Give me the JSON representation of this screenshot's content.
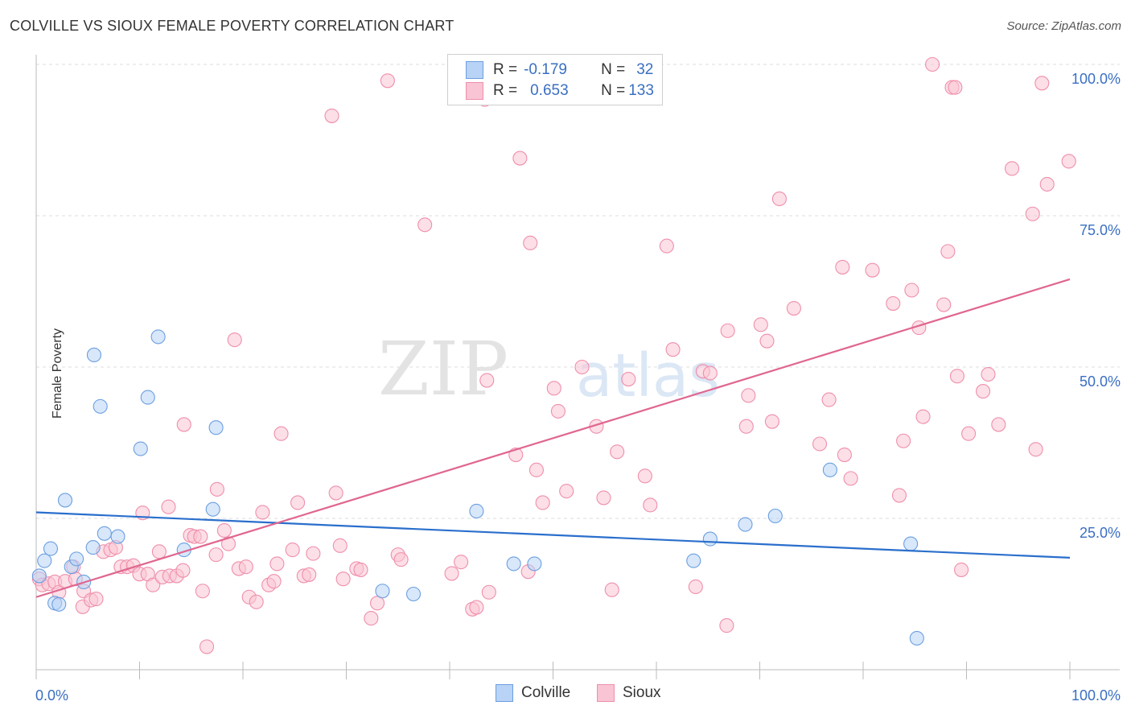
{
  "title": "COLVILLE VS SIOUX FEMALE POVERTY CORRELATION CHART",
  "source": "Source: ZipAtlas.com",
  "watermark": {
    "zip": "ZIP",
    "atlas": "atlas"
  },
  "colors": {
    "colville_fill": "#b8d3f5",
    "colville_stroke": "#6b9fe0",
    "colville_line": "#2a6fcc",
    "sioux_fill": "#f9c4d4",
    "sioux_stroke": "#ef8fab",
    "sioux_line": "#e0668f",
    "tick_label": "#3a6fc2",
    "grid": "#dedede"
  },
  "legend": {
    "rows": [
      {
        "r_label": "R =",
        "r_value": "-0.179",
        "n_label": "N =",
        "n_value": "32"
      },
      {
        "r_label": "R =",
        "r_value": "0.653",
        "n_label": "N =",
        "n_value": "133"
      }
    ]
  },
  "bottom_legend": [
    "Colville",
    "Sioux"
  ],
  "chart_data": {
    "type": "scatter",
    "title": "COLVILLE VS SIOUX FEMALE POVERTY CORRELATION CHART",
    "xlabel": "",
    "ylabel": "Female Poverty",
    "xlim": [
      0,
      100
    ],
    "ylim": [
      0,
      100
    ],
    "x_tick_labels": [
      "0.0%",
      "100.0%"
    ],
    "y_tick_labels": [
      "25.0%",
      "50.0%",
      "75.0%",
      "100.0%"
    ],
    "y_ticks": [
      25,
      50,
      75,
      100
    ],
    "grid": true,
    "legend_position": "top-center",
    "series": [
      {
        "name": "Colville",
        "trend": {
          "x": [
            0,
            100
          ],
          "y": [
            26.0,
            18.5
          ]
        },
        "points": [
          [
            0.3,
            15.5
          ],
          [
            0.8,
            18
          ],
          [
            1.4,
            20
          ],
          [
            1.8,
            11
          ],
          [
            2.2,
            10.8
          ],
          [
            2.8,
            28
          ],
          [
            3.4,
            17
          ],
          [
            3.9,
            18.3
          ],
          [
            4.6,
            14.5
          ],
          [
            5.5,
            20.2
          ],
          [
            5.6,
            52
          ],
          [
            6.2,
            43.5
          ],
          [
            6.6,
            22.5
          ],
          [
            7.9,
            22
          ],
          [
            10.1,
            36.5
          ],
          [
            10.8,
            45
          ],
          [
            11.8,
            55
          ],
          [
            14.3,
            19.8
          ],
          [
            17.1,
            26.5
          ],
          [
            17.4,
            40
          ],
          [
            33.5,
            13
          ],
          [
            36.5,
            12.5
          ],
          [
            42.6,
            26.2
          ],
          [
            46.2,
            17.5
          ],
          [
            48.2,
            17.5
          ],
          [
            65.2,
            21.6
          ],
          [
            63.6,
            18
          ],
          [
            68.6,
            24
          ],
          [
            71.5,
            25.4
          ],
          [
            76.8,
            33
          ],
          [
            84.6,
            20.8
          ],
          [
            85.2,
            5.2
          ]
        ]
      },
      {
        "name": "Sioux",
        "trend": {
          "x": [
            0,
            100
          ],
          "y": [
            12.0,
            64.5
          ]
        },
        "points": [
          [
            0.3,
            15
          ],
          [
            0.6,
            14
          ],
          [
            1.2,
            14.2
          ],
          [
            1.8,
            14.5
          ],
          [
            2.2,
            12.8
          ],
          [
            2.8,
            14.6
          ],
          [
            3.6,
            17
          ],
          [
            3.8,
            15
          ],
          [
            4.5,
            10.4
          ],
          [
            4.6,
            13
          ],
          [
            5.3,
            11.5
          ],
          [
            5.8,
            11.7
          ],
          [
            6.5,
            19.5
          ],
          [
            7.2,
            19.8
          ],
          [
            7.7,
            20.2
          ],
          [
            8.2,
            17
          ],
          [
            8.8,
            17
          ],
          [
            9.4,
            17.2
          ],
          [
            10.0,
            15.8
          ],
          [
            10.3,
            25.9
          ],
          [
            10.8,
            15.8
          ],
          [
            11.3,
            14
          ],
          [
            11.9,
            19.5
          ],
          [
            12.2,
            15.3
          ],
          [
            12.9,
            15.5
          ],
          [
            12.8,
            26.9
          ],
          [
            13.6,
            15.5
          ],
          [
            14.2,
            16.4
          ],
          [
            14.3,
            40.5
          ],
          [
            14.9,
            22.2
          ],
          [
            15.3,
            22
          ],
          [
            15.9,
            22
          ],
          [
            16.1,
            13
          ],
          [
            16.5,
            3.8
          ],
          [
            17.4,
            19
          ],
          [
            17.5,
            29.8
          ],
          [
            18.2,
            23
          ],
          [
            18.6,
            20.8
          ],
          [
            19.2,
            54.5
          ],
          [
            19.6,
            16.7
          ],
          [
            20.3,
            17
          ],
          [
            20.6,
            12
          ],
          [
            21.3,
            11.2
          ],
          [
            21.9,
            26
          ],
          [
            22.5,
            14
          ],
          [
            23.0,
            14.6
          ],
          [
            23.3,
            17.5
          ],
          [
            23.7,
            39
          ],
          [
            24.8,
            19.8
          ],
          [
            25.3,
            27.6
          ],
          [
            25.9,
            15.5
          ],
          [
            26.4,
            15.7
          ],
          [
            26.8,
            19.2
          ],
          [
            28.6,
            91.5
          ],
          [
            29.0,
            29.2
          ],
          [
            29.4,
            20.5
          ],
          [
            29.7,
            15
          ],
          [
            31.0,
            16.7
          ],
          [
            31.4,
            16.5
          ],
          [
            32.4,
            8.5
          ],
          [
            33.0,
            11
          ],
          [
            34.0,
            97.3
          ],
          [
            35.0,
            19
          ],
          [
            35.3,
            18.2
          ],
          [
            37.6,
            73.5
          ],
          [
            40.2,
            15.9
          ],
          [
            41.1,
            17.8
          ],
          [
            42.2,
            10
          ],
          [
            42.6,
            10.3
          ],
          [
            43.4,
            94.2
          ],
          [
            43.6,
            47.8
          ],
          [
            43.8,
            12.8
          ],
          [
            46.4,
            35.5
          ],
          [
            46.8,
            84.5
          ],
          [
            47.6,
            16.2
          ],
          [
            47.8,
            70.5
          ],
          [
            48.4,
            33
          ],
          [
            49.0,
            27.6
          ],
          [
            50.1,
            46.5
          ],
          [
            50.5,
            42.7
          ],
          [
            51.3,
            29.5
          ],
          [
            52.8,
            50
          ],
          [
            54.2,
            40.2
          ],
          [
            54.9,
            28.4
          ],
          [
            55.7,
            13.2
          ],
          [
            56.2,
            36
          ],
          [
            57.3,
            48
          ],
          [
            58.9,
            32
          ],
          [
            59.4,
            27.2
          ],
          [
            61.0,
            70
          ],
          [
            61.6,
            52.9
          ],
          [
            63.8,
            13.7
          ],
          [
            64.5,
            49.3
          ],
          [
            65.2,
            49
          ],
          [
            66.8,
            7.3
          ],
          [
            66.9,
            56
          ],
          [
            68.7,
            40.2
          ],
          [
            68.9,
            45.3
          ],
          [
            70.1,
            57
          ],
          [
            70.7,
            54.3
          ],
          [
            71.2,
            41
          ],
          [
            71.9,
            77.8
          ],
          [
            73.3,
            59.7
          ],
          [
            75.8,
            37.3
          ],
          [
            76.7,
            44.6
          ],
          [
            78.0,
            66.5
          ],
          [
            78.2,
            35.5
          ],
          [
            78.8,
            31.6
          ],
          [
            80.9,
            66
          ],
          [
            82.9,
            60.5
          ],
          [
            83.5,
            28.8
          ],
          [
            83.9,
            37.8
          ],
          [
            84.7,
            62.7
          ],
          [
            85.4,
            56.5
          ],
          [
            85.8,
            41.8
          ],
          [
            86.7,
            100
          ],
          [
            87.8,
            60.3
          ],
          [
            88.2,
            69.1
          ],
          [
            88.6,
            96.2
          ],
          [
            88.9,
            96.2
          ],
          [
            89.1,
            48.5
          ],
          [
            89.5,
            16.5
          ],
          [
            90.2,
            39
          ],
          [
            91.6,
            46
          ],
          [
            92.1,
            48.8
          ],
          [
            93.1,
            40.5
          ],
          [
            94.4,
            82.8
          ],
          [
            96.4,
            75.3
          ],
          [
            96.7,
            36.4
          ],
          [
            97.3,
            96.9
          ],
          [
            97.8,
            80.2
          ],
          [
            99.9,
            84
          ]
        ]
      }
    ]
  }
}
